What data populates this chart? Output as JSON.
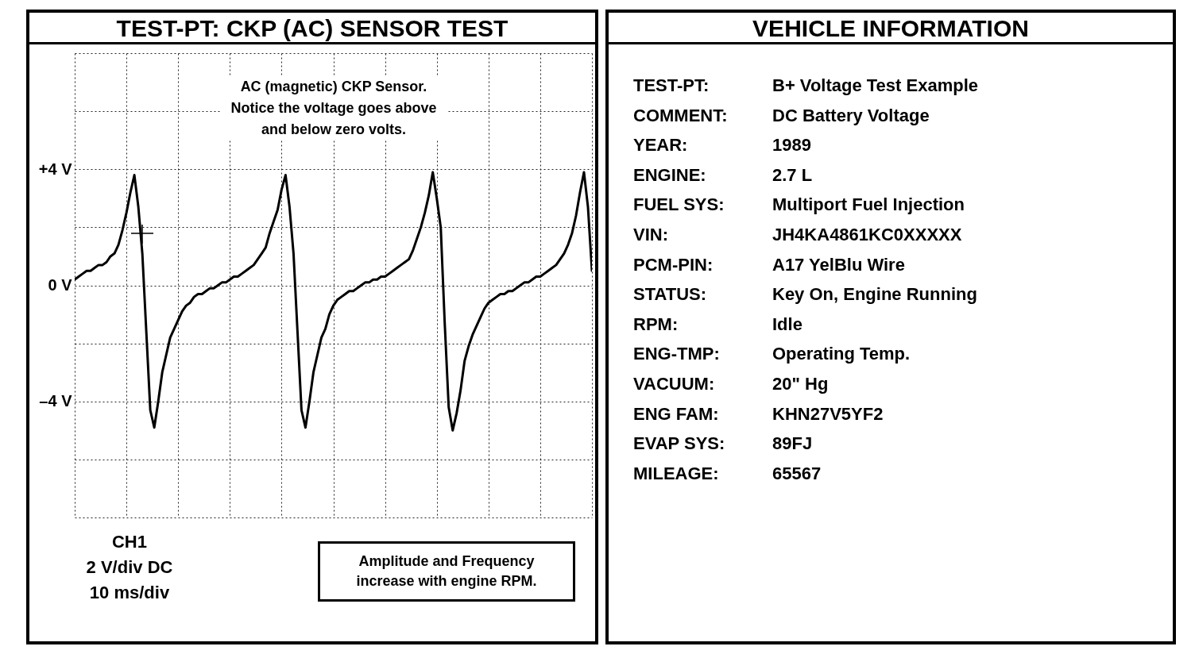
{
  "chart_data": [
    {
      "type": "line",
      "title": "TEST-PT: CKP (AC) SENSOR TEST",
      "categories": [
        null,
        null,
        null,
        null,
        null,
        null,
        null,
        null,
        null,
        null,
        null,
        null,
        null,
        null,
        null,
        null,
        null,
        null,
        null,
        null,
        null,
        null,
        null,
        null,
        null,
        null,
        null,
        null,
        null,
        null,
        null,
        null,
        null,
        null,
        null,
        null,
        null,
        null,
        null,
        null,
        null,
        null,
        null,
        null,
        null,
        null,
        null,
        null,
        null,
        null,
        null,
        null,
        null,
        null,
        null,
        null,
        null,
        null,
        null,
        null,
        null,
        null,
        null,
        null,
        null,
        null,
        null,
        null,
        null,
        null,
        null,
        null,
        null,
        null,
        null,
        null,
        null,
        null,
        null,
        null,
        null,
        null,
        null,
        null,
        null,
        null,
        null,
        null,
        null,
        null,
        null,
        null,
        null,
        null,
        null,
        null,
        null,
        null,
        null,
        null,
        null,
        null,
        null,
        null,
        null,
        null,
        null,
        null,
        null,
        null,
        null,
        null,
        null,
        null,
        null,
        null,
        null,
        null,
        null,
        null,
        null,
        null,
        null,
        null,
        null,
        null,
        null,
        null,
        null,
        null,
        null
      ],
      "values": [
        0.2,
        0.3,
        0.4,
        0.5,
        0.5,
        0.6,
        0.7,
        0.7,
        0.8,
        1.0,
        1.1,
        1.4,
        1.9,
        2.5,
        3.2,
        3.8,
        2.7,
        1.1,
        -1.6,
        -4.3,
        -4.9,
        -4.0,
        -3.0,
        -2.4,
        -1.8,
        -1.5,
        -1.2,
        -0.9,
        -0.7,
        -0.6,
        -0.4,
        -0.3,
        -0.3,
        -0.2,
        -0.1,
        -0.1,
        0.0,
        0.1,
        0.1,
        0.2,
        0.3,
        0.3,
        0.4,
        0.5,
        0.6,
        0.7,
        0.9,
        1.1,
        1.3,
        1.8,
        2.2,
        2.6,
        3.3,
        3.8,
        2.7,
        1.1,
        -1.6,
        -4.3,
        -4.9,
        -4.0,
        -3.0,
        -2.4,
        -1.8,
        -1.5,
        -1.0,
        -0.7,
        -0.5,
        -0.4,
        -0.3,
        -0.2,
        -0.2,
        -0.1,
        0.0,
        0.1,
        0.1,
        0.2,
        0.2,
        0.3,
        0.3,
        0.4,
        0.5,
        0.6,
        0.7,
        0.8,
        0.9,
        1.2,
        1.6,
        2.0,
        2.5,
        3.1,
        3.9,
        3.0,
        2.0,
        -1.3,
        -4.2,
        -5.0,
        -4.4,
        -3.6,
        -2.6,
        -2.1,
        -1.7,
        -1.4,
        -1.1,
        -0.8,
        -0.6,
        -0.5,
        -0.4,
        -0.3,
        -0.3,
        -0.2,
        -0.2,
        -0.1,
        0.0,
        0.1,
        0.1,
        0.2,
        0.3,
        0.3,
        0.4,
        0.5,
        0.6,
        0.7,
        0.9,
        1.1,
        1.4,
        1.8,
        2.4,
        3.2,
        3.9,
        2.7,
        0.5
      ],
      "color": "#000000",
      "line_style": "solid",
      "grid": true,
      "tick_labels": "y",
      "ylim": [
        -8,
        8
      ],
      "yticks": [
        {
          "value": -8,
          "label": null
        },
        {
          "value": -6,
          "label": null
        },
        {
          "value": -4,
          "label": "–4 V"
        },
        {
          "value": -2,
          "label": null
        },
        {
          "value": 0,
          "label": "0 V"
        },
        {
          "value": 2,
          "label": null
        },
        {
          "value": 4,
          "label": "+4 V"
        },
        {
          "value": 6,
          "label": null
        },
        {
          "value": 8,
          "label": null
        }
      ],
      "annotations": [
        "AC (magnetic) CKP Sensor. Notice the voltage goes above and below zero volts.",
        "CH1",
        "2 V/div DC",
        "10 ms/div",
        "Amplitude and Frequency increase with engine RPM."
      ]
    },
    {
      "type": "other",
      "title": "VEHICLE INFORMATION",
      "annotations": [
        "TEST-PT:",
        "B+ Voltage Test Example",
        "COMMENT:",
        "DC Battery Voltage",
        "YEAR:",
        "1989",
        "ENGINE:",
        "2.7 L",
        "FUEL SYS:",
        "Multiport Fuel Injection",
        "VIN:",
        "JH4KA4861KC0XXXXX",
        "PCM-PIN:",
        "A17 YelBlu Wire",
        "STATUS:",
        "Key On, Engine Running",
        "RPM:",
        "Idle",
        "ENG-TMP:",
        "Operating Temp.",
        "VACUUM:",
        "20\" Hg",
        "ENG FAM:",
        "KHN27V5YF2",
        "EVAP SYS:",
        "89FJ",
        "MILEAGE:",
        "65567"
      ]
    }
  ]
}
